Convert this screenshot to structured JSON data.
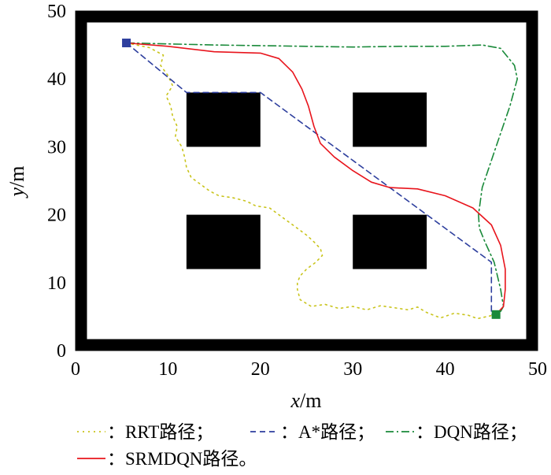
{
  "chart_data": {
    "type": "line",
    "title": "",
    "xlabel": "x",
    "xlabel_unit": "/m",
    "ylabel": "y",
    "ylabel_unit": "/m",
    "xlim": [
      0,
      50
    ],
    "ylim": [
      0,
      50
    ],
    "xticks": [
      "0",
      "10",
      "20",
      "30",
      "40",
      "50"
    ],
    "yticks": [
      "0",
      "10",
      "20",
      "30",
      "40",
      "50"
    ],
    "grid": false,
    "legend_position": "bottom",
    "start": {
      "x": 5.5,
      "y": 45.3,
      "color": "#2e3f9e"
    },
    "goal": {
      "x": 45.5,
      "y": 5.3,
      "color": "#1a8a3a"
    },
    "obstacles": [
      {
        "x0": 12,
        "y0": 30,
        "x1": 20,
        "y1": 38
      },
      {
        "x0": 30,
        "y0": 30,
        "x1": 38,
        "y1": 38
      },
      {
        "x0": 12,
        "y0": 12,
        "x1": 20,
        "y1": 20
      },
      {
        "x0": 30,
        "y0": 12,
        "x1": 38,
        "y1": 20
      }
    ],
    "series": [
      {
        "name": "RRT路径",
        "legend_label": "：RRT路径；",
        "color": "#c9c41c",
        "dash": "2,5",
        "points": [
          [
            5.5,
            45.3
          ],
          [
            8,
            44.6
          ],
          [
            9.5,
            43.5
          ],
          [
            9.2,
            42
          ],
          [
            10,
            40.5
          ],
          [
            10.5,
            39
          ],
          [
            9.8,
            37.5
          ],
          [
            10.3,
            36
          ],
          [
            10.5,
            34.5
          ],
          [
            11,
            33
          ],
          [
            10.8,
            31.5
          ],
          [
            11.5,
            30
          ],
          [
            11.8,
            28.5
          ],
          [
            12,
            27
          ],
          [
            12.5,
            25.5
          ],
          [
            13.5,
            24.5
          ],
          [
            14.5,
            23.5
          ],
          [
            15.5,
            22.8
          ],
          [
            17,
            22.5
          ],
          [
            18.5,
            22
          ],
          [
            19.5,
            21.3
          ],
          [
            21,
            21
          ],
          [
            22,
            20
          ],
          [
            23,
            19
          ],
          [
            24,
            18
          ],
          [
            25,
            17
          ],
          [
            25.8,
            16
          ],
          [
            26.5,
            15
          ],
          [
            26.7,
            14
          ],
          [
            26,
            13
          ],
          [
            25,
            12
          ],
          [
            24.3,
            11
          ],
          [
            24,
            10
          ],
          [
            24,
            9
          ],
          [
            24.3,
            7.5
          ],
          [
            25.5,
            6.5
          ],
          [
            27,
            6.8
          ],
          [
            28.5,
            6.2
          ],
          [
            30,
            6.5
          ],
          [
            31.5,
            6.0
          ],
          [
            33,
            6.6
          ],
          [
            34.5,
            6.3
          ],
          [
            36,
            6.0
          ],
          [
            37,
            6.4
          ],
          [
            38,
            5.6
          ],
          [
            39.5,
            4.8
          ],
          [
            41,
            5.5
          ],
          [
            42.5,
            5.2
          ],
          [
            43.5,
            4.7
          ],
          [
            44.5,
            5.0
          ],
          [
            45.5,
            5.3
          ]
        ]
      },
      {
        "name": "A*路径",
        "legend_label": "：A*路径；",
        "color": "#2e3f9e",
        "dash": "7,5",
        "points": [
          [
            5.5,
            45.3
          ],
          [
            12,
            38
          ],
          [
            20,
            38
          ],
          [
            45,
            13
          ],
          [
            45,
            5.3
          ],
          [
            45.5,
            5.3
          ]
        ]
      },
      {
        "name": "DQN路径",
        "legend_label": "：DQN路径；",
        "color": "#1a8a3a",
        "dash": "10,4,2,4",
        "points": [
          [
            5.5,
            45.3
          ],
          [
            15,
            45
          ],
          [
            25,
            44.8
          ],
          [
            30,
            44.7
          ],
          [
            35,
            44.8
          ],
          [
            40,
            44.8
          ],
          [
            44,
            45
          ],
          [
            46,
            44.5
          ],
          [
            47.5,
            42
          ],
          [
            47.8,
            40
          ],
          [
            47,
            36
          ],
          [
            46,
            32
          ],
          [
            45,
            28
          ],
          [
            44,
            24
          ],
          [
            43.6,
            20
          ],
          [
            43.7,
            18
          ],
          [
            44.3,
            16
          ],
          [
            45.3,
            13
          ],
          [
            46,
            9
          ],
          [
            46.3,
            6.5
          ],
          [
            45.8,
            5.3
          ]
        ]
      },
      {
        "name": "SRMDQN路径",
        "legend_label": "：SRMDQN路径。",
        "color": "#e8141c",
        "dash": "",
        "points": [
          [
            5.5,
            45.3
          ],
          [
            10,
            44.8
          ],
          [
            15,
            44.0
          ],
          [
            20,
            43.8
          ],
          [
            22,
            43.0
          ],
          [
            23.5,
            41
          ],
          [
            24.5,
            38.5
          ],
          [
            25.2,
            36
          ],
          [
            25.8,
            33
          ],
          [
            26.5,
            30.5
          ],
          [
            28,
            28.5
          ],
          [
            30,
            26.5
          ],
          [
            32,
            24.8
          ],
          [
            34,
            24.0
          ],
          [
            37,
            23.8
          ],
          [
            40,
            22.8
          ],
          [
            43,
            21
          ],
          [
            45,
            18.5
          ],
          [
            46,
            15.5
          ],
          [
            46.5,
            12
          ],
          [
            46.5,
            9
          ],
          [
            46.3,
            6.5
          ],
          [
            45.5,
            5.3
          ]
        ]
      }
    ]
  }
}
